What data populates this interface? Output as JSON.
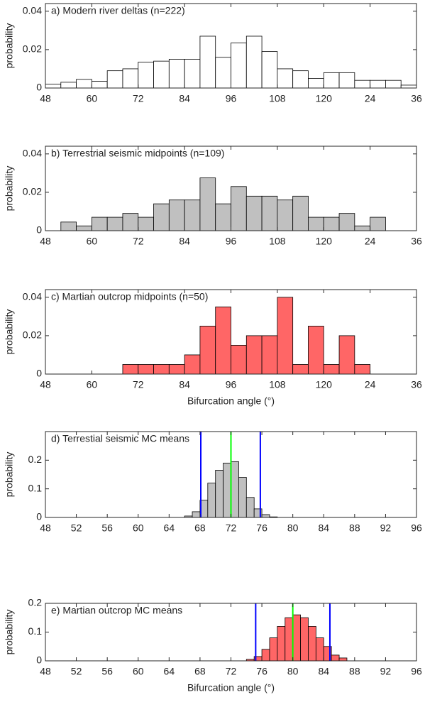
{
  "chart_data": [
    {
      "type": "histogram",
      "title": "a) Modern river deltas (n=222)",
      "ylabel": "probability",
      "color": "#ffffff",
      "bins": [
        48,
        52,
        56,
        60,
        64,
        68,
        72,
        76,
        80,
        84,
        88,
        92,
        96,
        100,
        104,
        108,
        112,
        116,
        120,
        124,
        128,
        132,
        136,
        140,
        144
      ],
      "values": [
        0.002,
        0.003,
        0.0045,
        0.0035,
        0.009,
        0.01,
        0.0135,
        0.014,
        0.015,
        0.015,
        0.027,
        0.016,
        0.0235,
        0.027,
        0.019,
        0.01,
        0.009,
        0.005,
        0.008,
        0.008,
        0.004,
        0.004,
        0.004,
        0.0015
      ],
      "xlim": [
        48,
        144
      ],
      "xticks": [
        48,
        60,
        72,
        84,
        96,
        108,
        120,
        {
          "value": 132,
          "label": "24"
        },
        {
          "value": 144,
          "label": "36"
        }
      ],
      "ylim": [
        0,
        0.044
      ],
      "yticks": [
        0,
        0.02,
        0.04
      ]
    },
    {
      "type": "histogram",
      "title": "b) Terrestrial seismic midpoints (n=109)",
      "ylabel": "probability",
      "color": "#c0c0c0",
      "bins": [
        48,
        52,
        56,
        60,
        64,
        68,
        72,
        76,
        80,
        84,
        88,
        92,
        96,
        100,
        104,
        108,
        112,
        116,
        120,
        124,
        128,
        132,
        136,
        140,
        144
      ],
      "values": [
        0,
        0.0045,
        0.0025,
        0.007,
        0.007,
        0.009,
        0.007,
        0.014,
        0.016,
        0.016,
        0.0275,
        0.014,
        0.023,
        0.018,
        0.018,
        0.016,
        0.018,
        0.007,
        0.007,
        0.009,
        0.0025,
        0.007,
        0,
        0
      ],
      "xlim": [
        48,
        144
      ],
      "xticks": [
        48,
        60,
        72,
        84,
        96,
        108,
        120,
        {
          "value": 132,
          "label": "24"
        },
        {
          "value": 144,
          "label": "36"
        }
      ],
      "ylim": [
        0,
        0.044
      ],
      "yticks": [
        0,
        0.02,
        0.04
      ]
    },
    {
      "type": "histogram",
      "title": "c) Martian outcrop midpoints (n=50)",
      "ylabel": "probability",
      "xlabel": "Bifurcation angle (°)",
      "color": "#ff6666",
      "bins": [
        48,
        52,
        56,
        60,
        64,
        68,
        72,
        76,
        80,
        84,
        88,
        92,
        96,
        100,
        104,
        108,
        112,
        116,
        120,
        124,
        128,
        132,
        136,
        140,
        144
      ],
      "values": [
        0,
        0,
        0,
        0,
        0,
        0.005,
        0.005,
        0.005,
        0.005,
        0.01,
        0.025,
        0.035,
        0.015,
        0.02,
        0.02,
        0.04,
        0.005,
        0.025,
        0.005,
        0.02,
        0.005,
        0,
        0,
        0
      ],
      "xlim": [
        48,
        144
      ],
      "xticks": [
        48,
        60,
        72,
        84,
        96,
        108,
        120,
        {
          "value": 132,
          "label": "24"
        },
        {
          "value": 144,
          "label": "36"
        }
      ],
      "ylim": [
        0,
        0.044
      ],
      "yticks": [
        0,
        0.02,
        0.04
      ]
    },
    {
      "type": "histogram",
      "title": "d) Terrestial seismic MC means",
      "ylabel": "probability",
      "color": "#c0c0c0",
      "bins": [
        66,
        67,
        68,
        69,
        70,
        71,
        72,
        73,
        74,
        75,
        76,
        77,
        78
      ],
      "values": [
        0.005,
        0.02,
        0.06,
        0.12,
        0.165,
        0.19,
        0.195,
        0.14,
        0.07,
        0.03,
        0.01,
        0.002
      ],
      "vlines": [
        {
          "x": 68.1,
          "color": "#0000ff"
        },
        {
          "x": 72.0,
          "color": "#00ff00"
        },
        {
          "x": 75.8,
          "color": "#0000ff"
        }
      ],
      "xlim": [
        48,
        96
      ],
      "xticks": [
        48,
        52,
        56,
        60,
        64,
        68,
        72,
        76,
        80,
        84,
        88,
        92,
        96
      ],
      "ylim": [
        0,
        0.3
      ],
      "yticks": [
        0,
        0.1,
        0.2
      ]
    },
    {
      "type": "histogram",
      "title": "e) Martian outcrop MC means",
      "ylabel": "probability",
      "xlabel": "Bifurcation angle (°)",
      "color": "#ff6666",
      "bins": [
        74,
        75,
        76,
        77,
        78,
        79,
        80,
        81,
        82,
        83,
        84,
        85,
        86,
        87
      ],
      "values": [
        0.005,
        0.015,
        0.04,
        0.08,
        0.12,
        0.15,
        0.16,
        0.15,
        0.12,
        0.08,
        0.05,
        0.02,
        0.01
      ],
      "vlines": [
        {
          "x": 75.2,
          "color": "#0000ff"
        },
        {
          "x": 80.0,
          "color": "#00ff00"
        },
        {
          "x": 84.8,
          "color": "#0000ff"
        }
      ],
      "xlim": [
        48,
        96
      ],
      "xticks": [
        48,
        52,
        56,
        60,
        64,
        68,
        72,
        76,
        80,
        84,
        88,
        92,
        96
      ],
      "ylim": [
        0,
        0.2
      ],
      "yticks": [
        0,
        0.1,
        0.2
      ]
    }
  ]
}
